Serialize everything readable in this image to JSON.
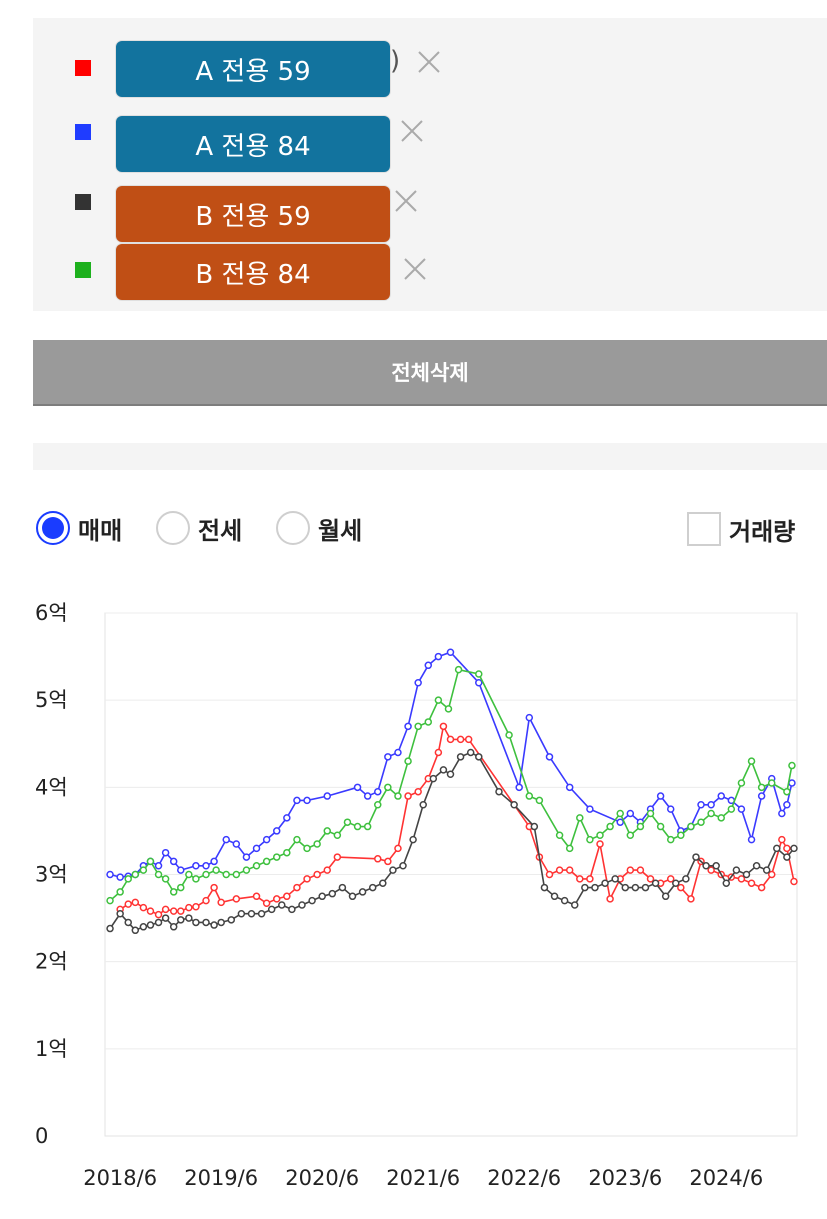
{
  "selection": {
    "items": [
      {
        "name": "A 전용 59",
        "color": "#ff0000",
        "label_bg": "#12739e",
        "partial_text": ")"
      },
      {
        "name": "A 전용 84",
        "color": "#1f3cff",
        "label_bg": "#12739e",
        "partial_text": ""
      },
      {
        "name": "B 전용 59",
        "color": "#333333",
        "label_bg": "#c04f15",
        "partial_text": ""
      },
      {
        "name": "B 전용 84",
        "color": "#1db01d",
        "label_bg": "#c04f15",
        "partial_text": ""
      }
    ]
  },
  "delete_all_label": "전체삭제",
  "trade_types": [
    {
      "label": "매매",
      "checked": true
    },
    {
      "label": "전세",
      "checked": false
    },
    {
      "label": "월세",
      "checked": false
    }
  ],
  "volume_toggle": {
    "label": "거래량",
    "checked": false
  },
  "chart_data": {
    "type": "line",
    "yticks": [
      "0",
      "1억",
      "2억",
      "3억",
      "4억",
      "5억",
      "6억"
    ],
    "xticks": [
      "2018/6",
      "2019/6",
      "2020/6",
      "2021/6",
      "2022/6",
      "2023/6",
      "2024/6"
    ],
    "ylim": [
      0,
      6
    ],
    "x_unit": "year",
    "xlim": [
      2018.3,
      2025.15
    ],
    "grid": true,
    "series": [
      {
        "name": "A 전용 59",
        "color": "#ff3333",
        "points": [
          [
            2018.45,
            2.6
          ],
          [
            2018.53,
            2.66
          ],
          [
            2018.6,
            2.68
          ],
          [
            2018.68,
            2.62
          ],
          [
            2018.75,
            2.58
          ],
          [
            2018.83,
            2.54
          ],
          [
            2018.9,
            2.6
          ],
          [
            2018.98,
            2.58
          ],
          [
            2019.05,
            2.58
          ],
          [
            2019.13,
            2.62
          ],
          [
            2019.2,
            2.63
          ],
          [
            2019.3,
            2.7
          ],
          [
            2019.38,
            2.85
          ],
          [
            2019.45,
            2.68
          ],
          [
            2019.6,
            2.72
          ],
          [
            2019.8,
            2.75
          ],
          [
            2019.9,
            2.67
          ],
          [
            2020.0,
            2.72
          ],
          [
            2020.1,
            2.75
          ],
          [
            2020.2,
            2.85
          ],
          [
            2020.3,
            2.95
          ],
          [
            2020.4,
            3.0
          ],
          [
            2020.5,
            3.05
          ],
          [
            2020.6,
            3.2
          ],
          [
            2021.0,
            3.18
          ],
          [
            2021.1,
            3.15
          ],
          [
            2021.2,
            3.3
          ],
          [
            2021.3,
            3.9
          ],
          [
            2021.4,
            3.95
          ],
          [
            2021.5,
            4.1
          ],
          [
            2021.6,
            4.4
          ],
          [
            2021.65,
            4.7
          ],
          [
            2021.72,
            4.55
          ],
          [
            2021.82,
            4.55
          ],
          [
            2021.9,
            4.55
          ],
          [
            2022.5,
            3.55
          ],
          [
            2022.6,
            3.2
          ],
          [
            2022.7,
            3.0
          ],
          [
            2022.8,
            3.05
          ],
          [
            2022.9,
            3.05
          ],
          [
            2023.0,
            2.95
          ],
          [
            2023.1,
            2.95
          ],
          [
            2023.2,
            3.35
          ],
          [
            2023.3,
            2.72
          ],
          [
            2023.4,
            2.95
          ],
          [
            2023.5,
            3.05
          ],
          [
            2023.6,
            3.05
          ],
          [
            2023.7,
            2.95
          ],
          [
            2023.8,
            2.9
          ],
          [
            2023.9,
            2.95
          ],
          [
            2024.0,
            2.85
          ],
          [
            2024.1,
            2.72
          ],
          [
            2024.2,
            3.15
          ],
          [
            2024.3,
            3.05
          ],
          [
            2024.4,
            3.0
          ],
          [
            2024.5,
            2.97
          ],
          [
            2024.6,
            2.95
          ],
          [
            2024.7,
            2.9
          ],
          [
            2024.8,
            2.85
          ],
          [
            2024.9,
            3.0
          ],
          [
            2025.0,
            3.4
          ],
          [
            2025.05,
            3.3
          ],
          [
            2025.12,
            2.92
          ]
        ]
      },
      {
        "name": "A 전용 84",
        "color": "#3a3aff",
        "points": [
          [
            2018.35,
            3.0
          ],
          [
            2018.45,
            2.97
          ],
          [
            2018.53,
            2.98
          ],
          [
            2018.6,
            3.0
          ],
          [
            2018.68,
            3.1
          ],
          [
            2018.75,
            3.15
          ],
          [
            2018.83,
            3.1
          ],
          [
            2018.9,
            3.25
          ],
          [
            2018.98,
            3.15
          ],
          [
            2019.05,
            3.05
          ],
          [
            2019.2,
            3.1
          ],
          [
            2019.3,
            3.1
          ],
          [
            2019.38,
            3.15
          ],
          [
            2019.5,
            3.4
          ],
          [
            2019.6,
            3.35
          ],
          [
            2019.7,
            3.2
          ],
          [
            2019.8,
            3.3
          ],
          [
            2019.9,
            3.4
          ],
          [
            2020.0,
            3.5
          ],
          [
            2020.1,
            3.65
          ],
          [
            2020.2,
            3.85
          ],
          [
            2020.3,
            3.85
          ],
          [
            2020.5,
            3.9
          ],
          [
            2020.8,
            4.0
          ],
          [
            2020.9,
            3.9
          ],
          [
            2021.0,
            3.95
          ],
          [
            2021.1,
            4.35
          ],
          [
            2021.2,
            4.4
          ],
          [
            2021.3,
            4.7
          ],
          [
            2021.4,
            5.2
          ],
          [
            2021.5,
            5.4
          ],
          [
            2021.6,
            5.5
          ],
          [
            2021.72,
            5.55
          ],
          [
            2022.0,
            5.2
          ],
          [
            2022.4,
            4.0
          ],
          [
            2022.5,
            4.8
          ],
          [
            2022.7,
            4.35
          ],
          [
            2022.9,
            4.0
          ],
          [
            2023.1,
            3.75
          ],
          [
            2023.4,
            3.6
          ],
          [
            2023.5,
            3.7
          ],
          [
            2023.6,
            3.6
          ],
          [
            2023.7,
            3.75
          ],
          [
            2023.8,
            3.9
          ],
          [
            2023.9,
            3.75
          ],
          [
            2024.0,
            3.5
          ],
          [
            2024.1,
            3.55
          ],
          [
            2024.2,
            3.8
          ],
          [
            2024.3,
            3.8
          ],
          [
            2024.4,
            3.9
          ],
          [
            2024.5,
            3.85
          ],
          [
            2024.6,
            3.75
          ],
          [
            2024.7,
            3.4
          ],
          [
            2024.8,
            3.9
          ],
          [
            2024.9,
            4.1
          ],
          [
            2025.0,
            3.7
          ],
          [
            2025.05,
            3.8
          ],
          [
            2025.1,
            4.05
          ]
        ]
      },
      {
        "name": "B 전용 59",
        "color": "#444444",
        "points": [
          [
            2018.35,
            2.38
          ],
          [
            2018.45,
            2.55
          ],
          [
            2018.53,
            2.45
          ],
          [
            2018.6,
            2.36
          ],
          [
            2018.68,
            2.4
          ],
          [
            2018.75,
            2.42
          ],
          [
            2018.83,
            2.45
          ],
          [
            2018.9,
            2.5
          ],
          [
            2018.98,
            2.4
          ],
          [
            2019.05,
            2.48
          ],
          [
            2019.13,
            2.5
          ],
          [
            2019.2,
            2.45
          ],
          [
            2019.3,
            2.45
          ],
          [
            2019.38,
            2.42
          ],
          [
            2019.45,
            2.45
          ],
          [
            2019.55,
            2.48
          ],
          [
            2019.65,
            2.55
          ],
          [
            2019.75,
            2.55
          ],
          [
            2019.85,
            2.55
          ],
          [
            2019.95,
            2.6
          ],
          [
            2020.05,
            2.65
          ],
          [
            2020.15,
            2.6
          ],
          [
            2020.25,
            2.65
          ],
          [
            2020.35,
            2.7
          ],
          [
            2020.45,
            2.75
          ],
          [
            2020.55,
            2.78
          ],
          [
            2020.65,
            2.85
          ],
          [
            2020.75,
            2.75
          ],
          [
            2020.85,
            2.8
          ],
          [
            2020.95,
            2.85
          ],
          [
            2021.05,
            2.9
          ],
          [
            2021.15,
            3.05
          ],
          [
            2021.25,
            3.1
          ],
          [
            2021.35,
            3.4
          ],
          [
            2021.45,
            3.8
          ],
          [
            2021.55,
            4.1
          ],
          [
            2021.65,
            4.2
          ],
          [
            2021.72,
            4.15
          ],
          [
            2021.82,
            4.35
          ],
          [
            2021.92,
            4.4
          ],
          [
            2022.0,
            4.35
          ],
          [
            2022.2,
            3.95
          ],
          [
            2022.35,
            3.8
          ],
          [
            2022.55,
            3.55
          ],
          [
            2022.65,
            2.85
          ],
          [
            2022.75,
            2.75
          ],
          [
            2022.85,
            2.7
          ],
          [
            2022.95,
            2.65
          ],
          [
            2023.05,
            2.85
          ],
          [
            2023.15,
            2.85
          ],
          [
            2023.25,
            2.9
          ],
          [
            2023.35,
            2.95
          ],
          [
            2023.45,
            2.85
          ],
          [
            2023.55,
            2.85
          ],
          [
            2023.65,
            2.85
          ],
          [
            2023.75,
            2.9
          ],
          [
            2023.85,
            2.75
          ],
          [
            2023.95,
            2.9
          ],
          [
            2024.05,
            2.95
          ],
          [
            2024.15,
            3.2
          ],
          [
            2024.25,
            3.1
          ],
          [
            2024.35,
            3.1
          ],
          [
            2024.45,
            2.9
          ],
          [
            2024.55,
            3.05
          ],
          [
            2024.65,
            3.0
          ],
          [
            2024.75,
            3.1
          ],
          [
            2024.85,
            3.05
          ],
          [
            2024.95,
            3.3
          ],
          [
            2025.05,
            3.2
          ],
          [
            2025.12,
            3.3
          ]
        ]
      },
      {
        "name": "B 전용 84",
        "color": "#3ec03e",
        "points": [
          [
            2018.35,
            2.7
          ],
          [
            2018.45,
            2.8
          ],
          [
            2018.53,
            2.95
          ],
          [
            2018.6,
            3.0
          ],
          [
            2018.68,
            3.05
          ],
          [
            2018.75,
            3.15
          ],
          [
            2018.83,
            3.0
          ],
          [
            2018.9,
            2.95
          ],
          [
            2018.98,
            2.8
          ],
          [
            2019.05,
            2.85
          ],
          [
            2019.13,
            3.0
          ],
          [
            2019.2,
            2.95
          ],
          [
            2019.3,
            3.0
          ],
          [
            2019.4,
            3.05
          ],
          [
            2019.5,
            3.0
          ],
          [
            2019.6,
            3.0
          ],
          [
            2019.7,
            3.05
          ],
          [
            2019.8,
            3.1
          ],
          [
            2019.9,
            3.15
          ],
          [
            2020.0,
            3.2
          ],
          [
            2020.1,
            3.25
          ],
          [
            2020.2,
            3.4
          ],
          [
            2020.3,
            3.3
          ],
          [
            2020.4,
            3.35
          ],
          [
            2020.5,
            3.5
          ],
          [
            2020.6,
            3.45
          ],
          [
            2020.7,
            3.6
          ],
          [
            2020.8,
            3.55
          ],
          [
            2020.9,
            3.55
          ],
          [
            2021.0,
            3.8
          ],
          [
            2021.1,
            4.0
          ],
          [
            2021.2,
            3.9
          ],
          [
            2021.3,
            4.3
          ],
          [
            2021.4,
            4.7
          ],
          [
            2021.5,
            4.75
          ],
          [
            2021.6,
            5.0
          ],
          [
            2021.7,
            4.9
          ],
          [
            2021.8,
            5.35
          ],
          [
            2022.0,
            5.3
          ],
          [
            2022.3,
            4.6
          ],
          [
            2022.5,
            3.9
          ],
          [
            2022.6,
            3.85
          ],
          [
            2022.8,
            3.45
          ],
          [
            2022.9,
            3.3
          ],
          [
            2023.0,
            3.65
          ],
          [
            2023.1,
            3.4
          ],
          [
            2023.2,
            3.45
          ],
          [
            2023.3,
            3.55
          ],
          [
            2023.4,
            3.7
          ],
          [
            2023.5,
            3.45
          ],
          [
            2023.6,
            3.55
          ],
          [
            2023.7,
            3.7
          ],
          [
            2023.8,
            3.55
          ],
          [
            2023.9,
            3.4
          ],
          [
            2024.0,
            3.45
          ],
          [
            2024.1,
            3.55
          ],
          [
            2024.2,
            3.6
          ],
          [
            2024.3,
            3.7
          ],
          [
            2024.4,
            3.65
          ],
          [
            2024.5,
            3.75
          ],
          [
            2024.6,
            4.05
          ],
          [
            2024.7,
            4.3
          ],
          [
            2024.8,
            4.0
          ],
          [
            2024.9,
            4.05
          ],
          [
            2025.05,
            3.95
          ],
          [
            2025.1,
            4.25
          ]
        ]
      }
    ]
  }
}
